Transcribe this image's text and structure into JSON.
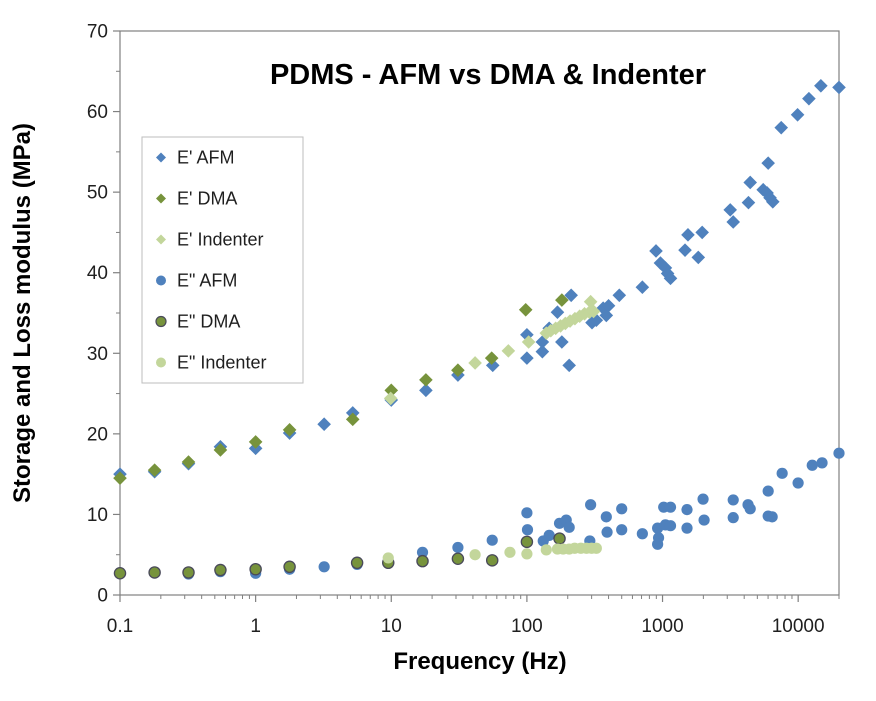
{
  "title": "PDMS - AFM vs DMA & Indenter",
  "axes": {
    "x": {
      "label": "Frequency (Hz)",
      "scale": "log",
      "min": 0.1,
      "max": 20000,
      "major_ticks": [
        0.1,
        1,
        10,
        100,
        1000,
        10000
      ],
      "tick_labels": [
        "0.1",
        "1",
        "10",
        "100",
        "1000",
        "10000"
      ]
    },
    "y": {
      "label": "Storage and Loss modulus (MPa)",
      "scale": "linear",
      "min": 0,
      "max": 70,
      "major_step": 10,
      "minor_step": 5,
      "tick_labels": [
        "0",
        "10",
        "20",
        "30",
        "40",
        "50",
        "60",
        "70"
      ]
    }
  },
  "colors": {
    "axis": "#808080",
    "text": "#1f1f1f",
    "title": "#000000",
    "legend_border": "#BDBDBD",
    "background": "#FFFFFF",
    "blue": "#4F81BD",
    "olive": "#77933C",
    "light_green": "#C3D69B",
    "olive_ring": "#4A4A5A"
  },
  "chart_data": {
    "type": "scatter",
    "x_scale": "log",
    "xlim": [
      0.1,
      20000
    ],
    "ylim": [
      0,
      70
    ],
    "grid": false,
    "legend_position": "inside-upper-left",
    "xlabel": "Frequency (Hz)",
    "ylabel": "Storage and Loss modulus (MPa)",
    "series": [
      {
        "name": "E' AFM",
        "marker": "diamond",
        "fill": "#4F81BD",
        "stroke": null,
        "points": [
          [
            0.1,
            15.0
          ],
          [
            0.18,
            15.3
          ],
          [
            0.32,
            16.3
          ],
          [
            0.55,
            18.4
          ],
          [
            1.0,
            18.2
          ],
          [
            1.78,
            20.1
          ],
          [
            3.2,
            21.2
          ],
          [
            5.2,
            22.6
          ],
          [
            10,
            24.2
          ],
          [
            18,
            25.4
          ],
          [
            31,
            27.3
          ],
          [
            56,
            28.5
          ],
          [
            100,
            32.3
          ],
          [
            100,
            29.4
          ],
          [
            130,
            31.4
          ],
          [
            130,
            30.2
          ],
          [
            146,
            33.1
          ],
          [
            168,
            35.1
          ],
          [
            181,
            31.4
          ],
          [
            205,
            28.5
          ],
          [
            212,
            37.2
          ],
          [
            302,
            33.8
          ],
          [
            325,
            34.1
          ],
          [
            365,
            35.6
          ],
          [
            385,
            34.7
          ],
          [
            400,
            35.9
          ],
          [
            480,
            37.2
          ],
          [
            710,
            38.2
          ],
          [
            895,
            42.7
          ],
          [
            965,
            41.2
          ],
          [
            1050,
            40.6
          ],
          [
            1090,
            39.9
          ],
          [
            1145,
            39.3
          ],
          [
            1465,
            42.8
          ],
          [
            1540,
            44.7
          ],
          [
            1835,
            41.9
          ],
          [
            1960,
            45.0
          ],
          [
            3155,
            47.8
          ],
          [
            3320,
            46.3
          ],
          [
            4300,
            48.7
          ],
          [
            4430,
            51.2
          ],
          [
            5520,
            50.3
          ],
          [
            5900,
            49.9
          ],
          [
            6200,
            49.3
          ],
          [
            6500,
            48.8
          ],
          [
            6010,
            53.6
          ],
          [
            7500,
            58.0
          ],
          [
            9900,
            59.6
          ],
          [
            12000,
            61.6
          ],
          [
            14700,
            63.2
          ],
          [
            20000,
            63.0
          ]
        ]
      },
      {
        "name": "E' DMA",
        "marker": "diamond",
        "fill": "#77933C",
        "stroke": null,
        "points": [
          [
            0.1,
            14.5
          ],
          [
            0.18,
            15.5
          ],
          [
            0.32,
            16.5
          ],
          [
            0.55,
            18.0
          ],
          [
            1.0,
            19.0
          ],
          [
            1.78,
            20.5
          ],
          [
            5.2,
            21.8
          ],
          [
            10,
            25.4
          ],
          [
            18,
            26.7
          ],
          [
            31,
            27.9
          ],
          [
            55,
            29.4
          ],
          [
            98,
            35.4
          ],
          [
            181,
            36.6
          ]
        ]
      },
      {
        "name": "E' Indenter",
        "marker": "diamond",
        "fill": "#C3D69B",
        "stroke": null,
        "points": [
          [
            9.9,
            24.4
          ],
          [
            41.5,
            28.8
          ],
          [
            73,
            30.3
          ],
          [
            103,
            31.4
          ],
          [
            139,
            32.5
          ],
          [
            150,
            32.8
          ],
          [
            163,
            33.1
          ],
          [
            177,
            33.4
          ],
          [
            192,
            33.7
          ],
          [
            208,
            34.0
          ],
          [
            226,
            34.3
          ],
          [
            245,
            34.6
          ],
          [
            266,
            34.9
          ],
          [
            289,
            35.1
          ],
          [
            310,
            35.2
          ],
          [
            295,
            36.4
          ]
        ]
      },
      {
        "name": "E\" AFM",
        "marker": "circle",
        "fill": "#4F81BD",
        "stroke": null,
        "points": [
          [
            0.1,
            2.75
          ],
          [
            0.18,
            2.8
          ],
          [
            0.32,
            2.6
          ],
          [
            0.55,
            2.9
          ],
          [
            1.0,
            2.7
          ],
          [
            1.78,
            3.2
          ],
          [
            3.2,
            3.5
          ],
          [
            5.6,
            3.8
          ],
          [
            9.5,
            4.2
          ],
          [
            17,
            5.3
          ],
          [
            31,
            5.9
          ],
          [
            55.5,
            6.8
          ],
          [
            100,
            10.2
          ],
          [
            101,
            8.1
          ],
          [
            132,
            6.7
          ],
          [
            146,
            7.4
          ],
          [
            174,
            8.9
          ],
          [
            195,
            9.3
          ],
          [
            205,
            8.4
          ],
          [
            291,
            6.7
          ],
          [
            295,
            11.2
          ],
          [
            385,
            9.7
          ],
          [
            390,
            7.8
          ],
          [
            500,
            10.7
          ],
          [
            500,
            8.1
          ],
          [
            710,
            7.6
          ],
          [
            920,
            8.3
          ],
          [
            935,
            7.1
          ],
          [
            920,
            6.3
          ],
          [
            1020,
            10.9
          ],
          [
            1145,
            10.9
          ],
          [
            1050,
            8.7
          ],
          [
            1145,
            8.6
          ],
          [
            1515,
            10.6
          ],
          [
            1515,
            8.3
          ],
          [
            1990,
            11.9
          ],
          [
            2025,
            9.3
          ],
          [
            3320,
            11.8
          ],
          [
            3320,
            9.6
          ],
          [
            4270,
            11.2
          ],
          [
            4430,
            10.7
          ],
          [
            6010,
            12.9
          ],
          [
            6010,
            9.8
          ],
          [
            6430,
            9.7
          ],
          [
            7620,
            15.1
          ],
          [
            9990,
            13.9
          ],
          [
            12700,
            16.1
          ],
          [
            15000,
            16.4
          ],
          [
            20000,
            17.6
          ]
        ]
      },
      {
        "name": "E\" DMA",
        "marker": "circle",
        "fill": "#77933C",
        "stroke": "#4A4A5A",
        "points": [
          [
            0.1,
            2.7
          ],
          [
            0.18,
            2.8
          ],
          [
            0.32,
            2.8
          ],
          [
            0.55,
            3.1
          ],
          [
            1.0,
            3.2
          ],
          [
            1.78,
            3.5
          ],
          [
            5.6,
            4.0
          ],
          [
            9.5,
            4.0
          ],
          [
            17,
            4.2
          ],
          [
            31,
            4.5
          ],
          [
            55.5,
            4.3
          ],
          [
            100,
            6.6
          ],
          [
            174,
            7.0
          ]
        ]
      },
      {
        "name": "E\" Indenter",
        "marker": "circle",
        "fill": "#C3D69B",
        "stroke": null,
        "points": [
          [
            9.5,
            4.6
          ],
          [
            41.5,
            5.0
          ],
          [
            75,
            5.3
          ],
          [
            100,
            5.1
          ],
          [
            139,
            5.6
          ],
          [
            168,
            5.7
          ],
          [
            185,
            5.7
          ],
          [
            205,
            5.7
          ],
          [
            225,
            5.8
          ],
          [
            250,
            5.8
          ],
          [
            275,
            5.8
          ],
          [
            300,
            5.8
          ],
          [
            325,
            5.8
          ]
        ]
      }
    ]
  }
}
